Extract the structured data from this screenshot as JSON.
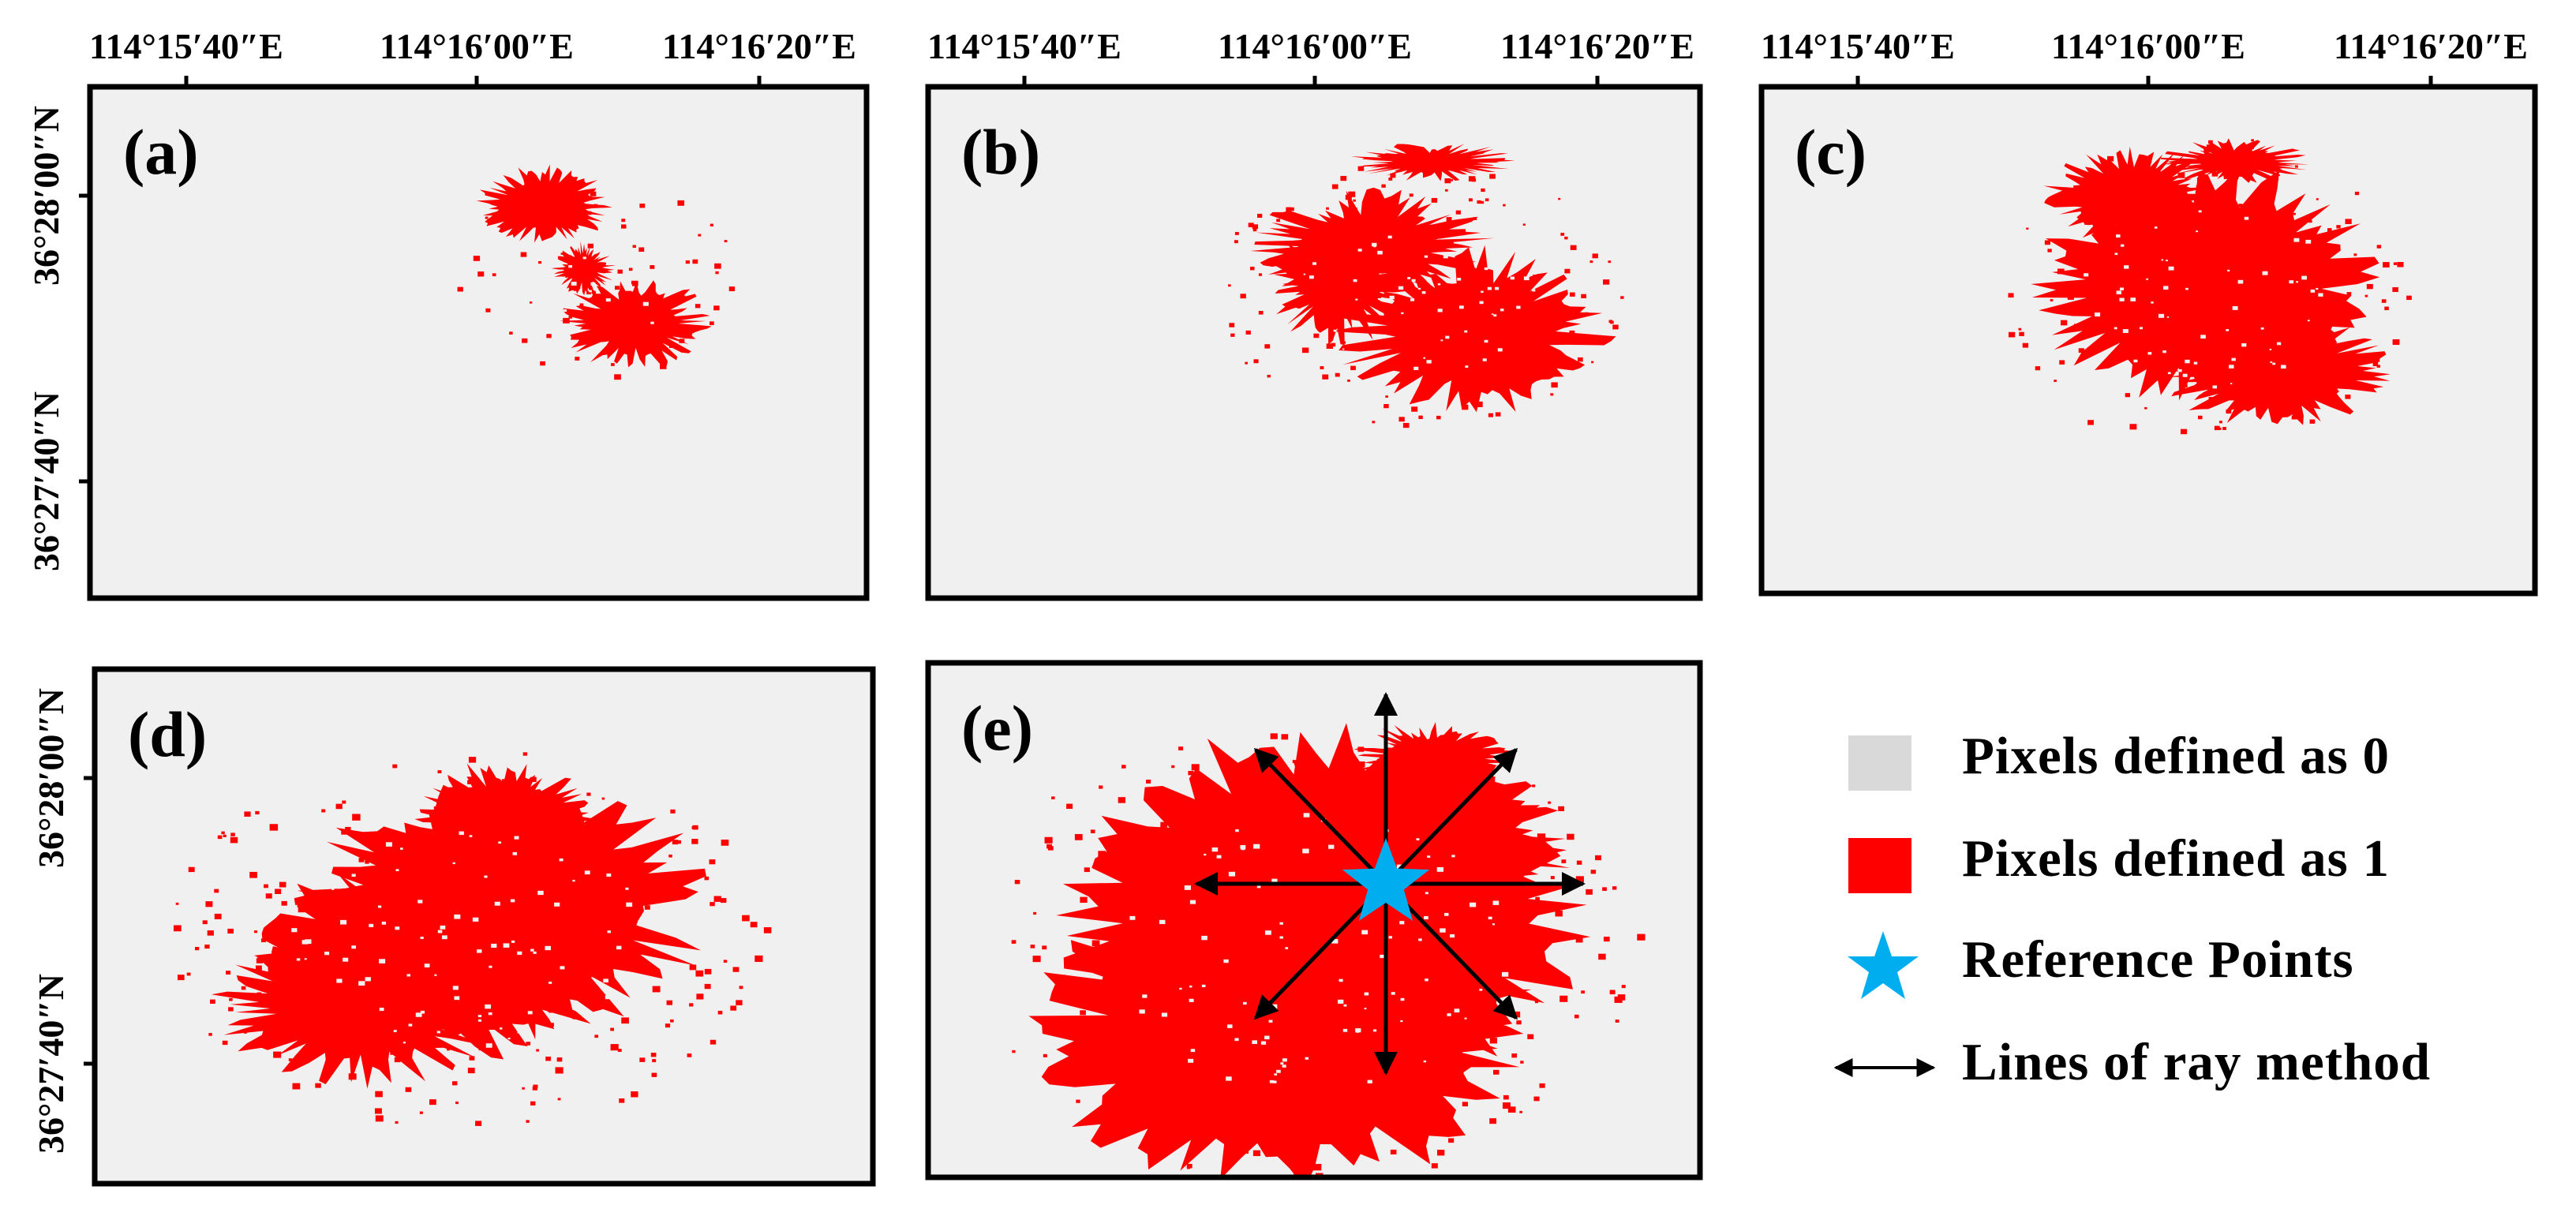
{
  "panels": [
    {
      "label": "(a)",
      "show_lon": true,
      "show_lat": true
    },
    {
      "label": "(b)",
      "show_lon": true,
      "show_lat": false
    },
    {
      "label": "(c)",
      "show_lon": true,
      "show_lat": false
    },
    {
      "label": "(d)",
      "show_lon": false,
      "show_lat": true
    },
    {
      "label": "(e)",
      "show_lon": false,
      "show_lat": false,
      "rays": true
    }
  ],
  "lon_ticks": [
    "114°15′40″E",
    "114°16′00″E",
    "114°16′20″E"
  ],
  "lat_ticks": [
    "36°28′00″N",
    "36°27′40″N"
  ],
  "legend": {
    "pixels0": "Pixels defined as 0",
    "pixels1": "Pixels defined as 1",
    "reference": "Reference Points",
    "rays": "Lines of ray method"
  },
  "colors": {
    "background": "#f0f0f0",
    "pixel0": "#d9d9d9",
    "pixel1": "#ff0000",
    "reference": "#00aeef",
    "frame": "#000000"
  }
}
